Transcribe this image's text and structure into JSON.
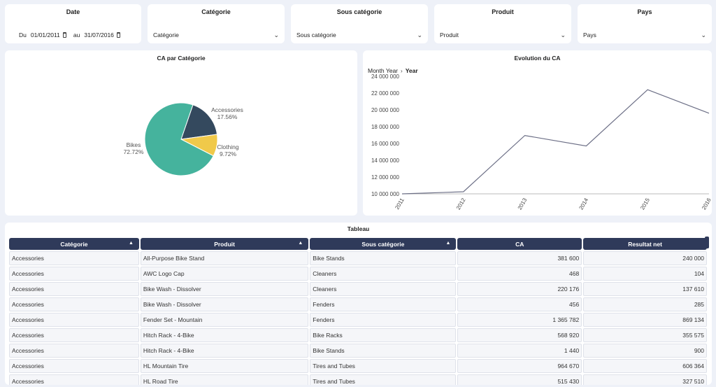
{
  "filters": {
    "date": {
      "title": "Date",
      "from_label": "Du",
      "from_value": "01/01/2011",
      "to_label": "au",
      "to_value": "31/07/2016"
    },
    "categorie": {
      "title": "Catégorie",
      "value": "Catégorie"
    },
    "sous_categorie": {
      "title": "Sous catégorie",
      "value": "Sous catégorie"
    },
    "produit": {
      "title": "Produit",
      "value": "Produit"
    },
    "pays": {
      "title": "Pays",
      "value": "Pays"
    }
  },
  "pie": {
    "title": "CA par Catégorie",
    "chart_data": {
      "type": "pie",
      "title": "CA par Catégorie",
      "slices": [
        {
          "label": "Bikes",
          "value": 72.72,
          "pct": "72.72%",
          "color": "#45b39d"
        },
        {
          "label": "Accessories",
          "value": 17.56,
          "pct": "17.56%",
          "color": "#34495e"
        },
        {
          "label": "Clothing",
          "value": 9.72,
          "pct": "9.72%",
          "color": "#f0c94a"
        }
      ]
    }
  },
  "line": {
    "title": "Evolution du CA",
    "breadcrumb": {
      "level1": "Month Year",
      "level2": "Year"
    },
    "chart_data": {
      "type": "line",
      "title": "Evolution du CA",
      "x": [
        "2011",
        "2012",
        "2013",
        "2014",
        "2015",
        "2016"
      ],
      "series": [
        {
          "name": "CA",
          "values": [
            10000000,
            10250000,
            16950000,
            15700000,
            22400000,
            19600000
          ],
          "color": "#6c6f86"
        }
      ],
      "ylim": [
        10000000,
        24000000
      ],
      "yticks": [
        {
          "v": 10000000,
          "label": "10 000 000"
        },
        {
          "v": 12000000,
          "label": "12 000 000"
        },
        {
          "v": 14000000,
          "label": "14 000 000"
        },
        {
          "v": 16000000,
          "label": "16 000 000"
        },
        {
          "v": 18000000,
          "label": "18 000 000"
        },
        {
          "v": 20000000,
          "label": "20 000 000"
        },
        {
          "v": 22000000,
          "label": "22 000 000"
        },
        {
          "v": 24000000,
          "label": "24 000 000"
        }
      ]
    }
  },
  "table": {
    "title": "Tableau",
    "columns": [
      "Catégorie",
      "Produit",
      "Sous catégorie",
      "CA",
      "Resultat net"
    ],
    "rows": [
      [
        "Accessories",
        "All-Purpose Bike Stand",
        "Bike Stands",
        "381 600",
        "240 000"
      ],
      [
        "Accessories",
        "AWC Logo Cap",
        "Cleaners",
        "468",
        "104"
      ],
      [
        "Accessories",
        "Bike Wash - Dissolver",
        "Cleaners",
        "220 176",
        "137 610"
      ],
      [
        "Accessories",
        "Bike Wash - Dissolver",
        "Fenders",
        "456",
        "285"
      ],
      [
        "Accessories",
        "Fender Set - Mountain",
        "Fenders",
        "1 365 782",
        "869 134"
      ],
      [
        "Accessories",
        "Hitch Rack - 4-Bike",
        "Bike Racks",
        "568 920",
        "355 575"
      ],
      [
        "Accessories",
        "Hitch Rack - 4-Bike",
        "Bike Stands",
        "1 440",
        "900"
      ],
      [
        "Accessories",
        "HL Mountain Tire",
        "Tires and Tubes",
        "964 670",
        "606 364"
      ],
      [
        "Accessories",
        "HL Road Tire",
        "Tires and Tubes",
        "515 430",
        "327 510"
      ]
    ]
  }
}
